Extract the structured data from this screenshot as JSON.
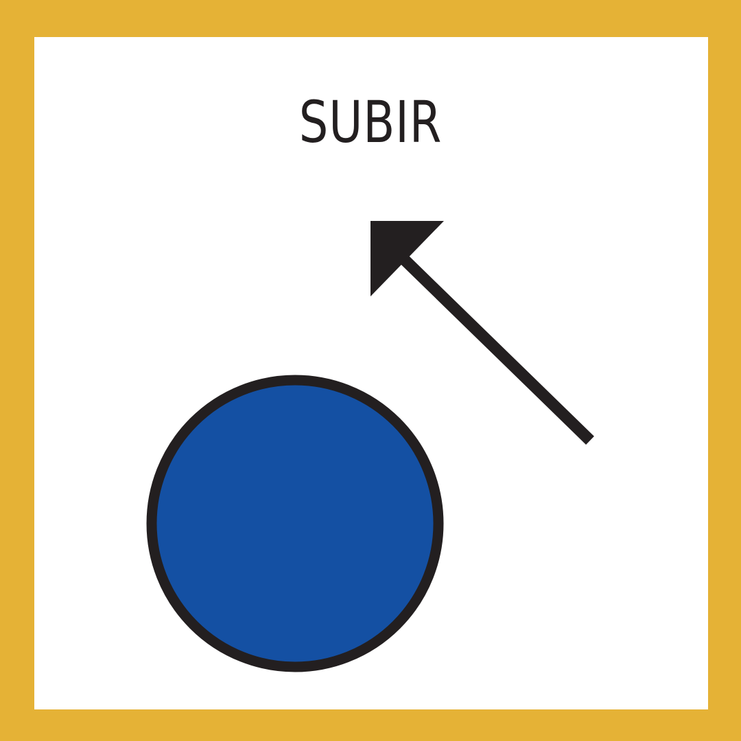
{
  "sign": {
    "label": "SUBIR",
    "direction_icon": "arrow-up-left-icon",
    "marker_icon": "blue-circle-icon"
  },
  "colors": {
    "border": "#E5B236",
    "background": "#FFFFFF",
    "ink": "#231F20",
    "circle_fill": "#1450A3"
  }
}
